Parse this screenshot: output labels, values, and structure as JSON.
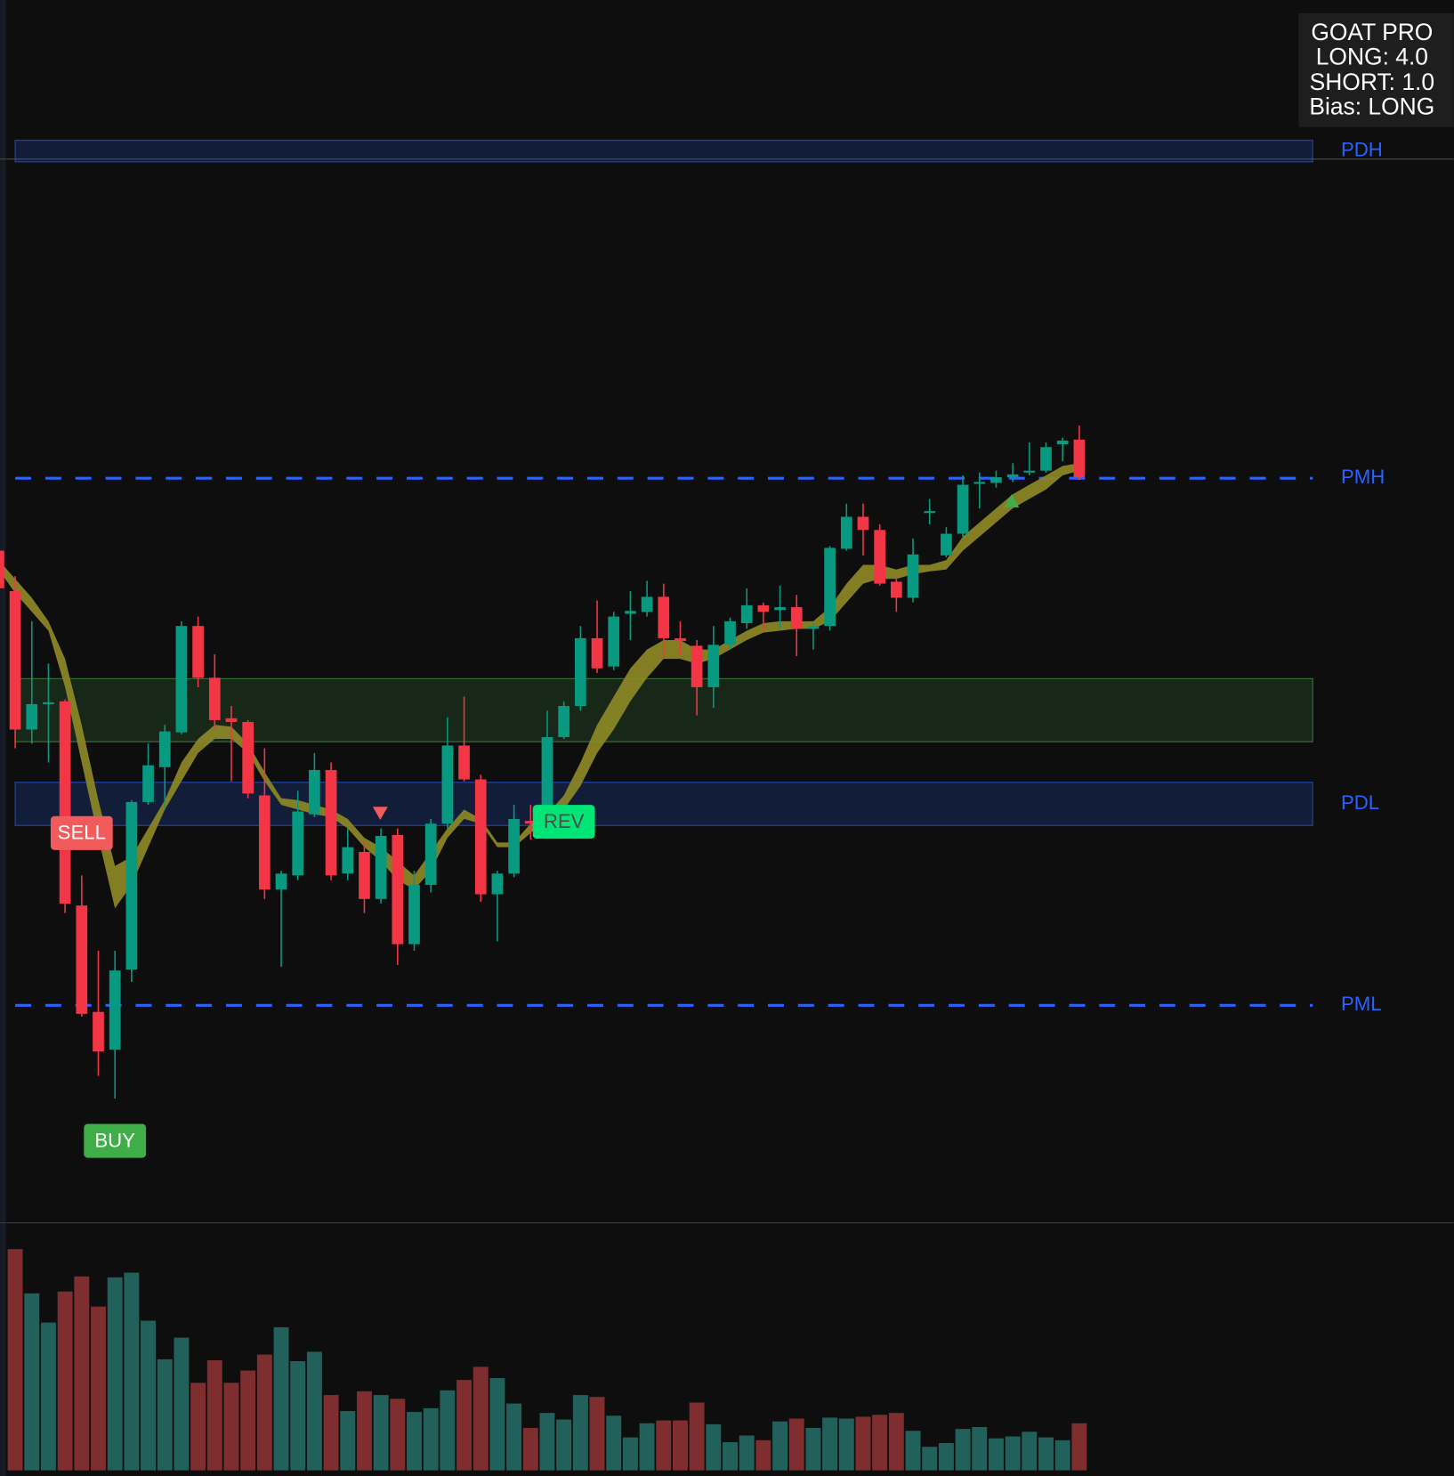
{
  "chart_data": {
    "type": "candlestick",
    "ylim": [
      0,
      1300
    ],
    "vlim": [
      0,
      264
    ],
    "up_color": "#089981",
    "down_color": "#f23645",
    "volume_up_color": "#22615b",
    "volume_down_color": "#7f2e30",
    "ribbon_color": "#8a8526",
    "level_color": "#2962ff",
    "open": [
      715,
      672,
      525,
      552,
      555,
      338,
      225,
      185,
      270,
      448,
      485,
      522,
      635,
      580,
      537,
      533,
      455,
      355,
      370,
      435,
      482,
      372,
      395,
      345,
      413,
      297,
      360,
      425,
      508,
      472,
      350,
      372,
      428,
      425,
      517,
      550,
      622,
      592,
      648,
      650,
      666,
      622,
      614,
      570,
      615,
      638,
      657,
      652,
      655,
      632,
      635,
      717,
      751,
      737,
      682,
      665,
      755,
      710,
      733,
      787,
      787,
      793,
      798,
      800,
      828,
      833
    ],
    "high": [
      720,
      688,
      640,
      595,
      557,
      370,
      290,
      290,
      450,
      510,
      530,
      640,
      645,
      605,
      550,
      535,
      505,
      375,
      460,
      500,
      490,
      420,
      407,
      420,
      420,
      375,
      430,
      538,
      560,
      477,
      375,
      445,
      445,
      545,
      555,
      635,
      662,
      650,
      672,
      683,
      680,
      640,
      620,
      635,
      644,
      675,
      660,
      678,
      668,
      638,
      720,
      765,
      765,
      743,
      688,
      728,
      770,
      740,
      795,
      798,
      800,
      808,
      830,
      830,
      835,
      848
    ],
    "low": [
      670,
      505,
      510,
      490,
      330,
      220,
      157,
      133,
      257,
      445,
      440,
      520,
      570,
      525,
      470,
      452,
      345,
      273,
      365,
      432,
      365,
      365,
      330,
      340,
      275,
      290,
      352,
      420,
      470,
      342,
      300,
      368,
      408,
      422,
      515,
      545,
      585,
      588,
      620,
      645,
      600,
      605,
      540,
      548,
      610,
      632,
      630,
      632,
      603,
      610,
      630,
      715,
      710,
      678,
      650,
      660,
      743,
      708,
      730,
      760,
      782,
      788,
      795,
      798,
      810,
      790
    ],
    "close": [
      675,
      525,
      552,
      554,
      340,
      223,
      183,
      269,
      448,
      487,
      523,
      635,
      580,
      535,
      533,
      457,
      355,
      372,
      438,
      482,
      370,
      400,
      345,
      412,
      297,
      360,
      425,
      508,
      472,
      350,
      372,
      430,
      425,
      517,
      550,
      622,
      590,
      645,
      651,
      666,
      622,
      619,
      570,
      615,
      640,
      657,
      650,
      655,
      632,
      635,
      718,
      751,
      737,
      680,
      665,
      711,
      757,
      733,
      785,
      788,
      793,
      796,
      800,
      825,
      832,
      793
    ],
    "volume": [
      null,
      235,
      188,
      157,
      190,
      206,
      174,
      205,
      210,
      159,
      118,
      141,
      93,
      117,
      93,
      106,
      123,
      152,
      116,
      126,
      80,
      63,
      84,
      80,
      76,
      62,
      66,
      85,
      96,
      110,
      98,
      71,
      45,
      61,
      54,
      80,
      78,
      58,
      35,
      50,
      53,
      53,
      72,
      49,
      30,
      37,
      32,
      52,
      55,
      45,
      56,
      55,
      57,
      59,
      61,
      42,
      25,
      29,
      44,
      46,
      34,
      36,
      41,
      35,
      32,
      50
    ],
    "ribbon_upper": [
      705,
      685,
      665,
      640,
      600,
      530,
      450,
      380,
      390,
      420,
      450,
      490,
      515,
      530,
      528,
      510,
      480,
      452,
      450,
      445,
      440,
      430,
      410,
      400,
      385,
      370,
      395,
      420,
      440,
      430,
      405,
      405,
      425,
      435,
      455,
      490,
      530,
      560,
      590,
      610,
      620,
      620,
      610,
      610,
      620,
      630,
      638,
      640,
      640,
      640,
      655,
      680,
      700,
      700,
      695,
      700,
      700,
      705,
      730,
      745,
      760,
      775,
      785,
      795,
      805,
      808
    ],
    "ribbon_lower": [
      695,
      670,
      650,
      630,
      570,
      490,
      410,
      335,
      360,
      400,
      440,
      470,
      500,
      515,
      515,
      500,
      470,
      445,
      440,
      435,
      432,
      420,
      400,
      385,
      365,
      355,
      375,
      410,
      430,
      425,
      400,
      400,
      415,
      430,
      440,
      465,
      500,
      525,
      555,
      580,
      600,
      600,
      595,
      600,
      610,
      620,
      628,
      630,
      632,
      632,
      640,
      660,
      680,
      685,
      685,
      690,
      693,
      695,
      715,
      730,
      745,
      760,
      770,
      780,
      795,
      800
    ],
    "hline": 1131,
    "zones": [
      {
        "label": "PDH",
        "top": 1151,
        "bottom": 1128,
        "color": "#2962ff"
      },
      {
        "top": 579,
        "bottom": 512,
        "color": "#4caf50"
      },
      {
        "label": "PDL",
        "top": 469,
        "bottom": 423,
        "color": "#2962ff"
      }
    ],
    "levels": [
      {
        "label": "PMH",
        "value": 792
      },
      {
        "label": "PML",
        "value": 232
      }
    ],
    "signals": [
      {
        "label": "SELL",
        "bar": 5,
        "price": 415,
        "color": "#f25b5b",
        "text_color": "#ffffff"
      },
      {
        "label": "BUY",
        "bar": 7,
        "price": 88,
        "color": "#3fae49",
        "text_color": "#ffffff"
      },
      {
        "label": "REV",
        "bar": 34,
        "price": 427,
        "color": "#00e676",
        "text_color": "#4a4a4a"
      }
    ],
    "info": [
      "GOAT PRO",
      "LONG:  4.0",
      "SHORT: 1.0",
      "Bias: LONG"
    ]
  }
}
